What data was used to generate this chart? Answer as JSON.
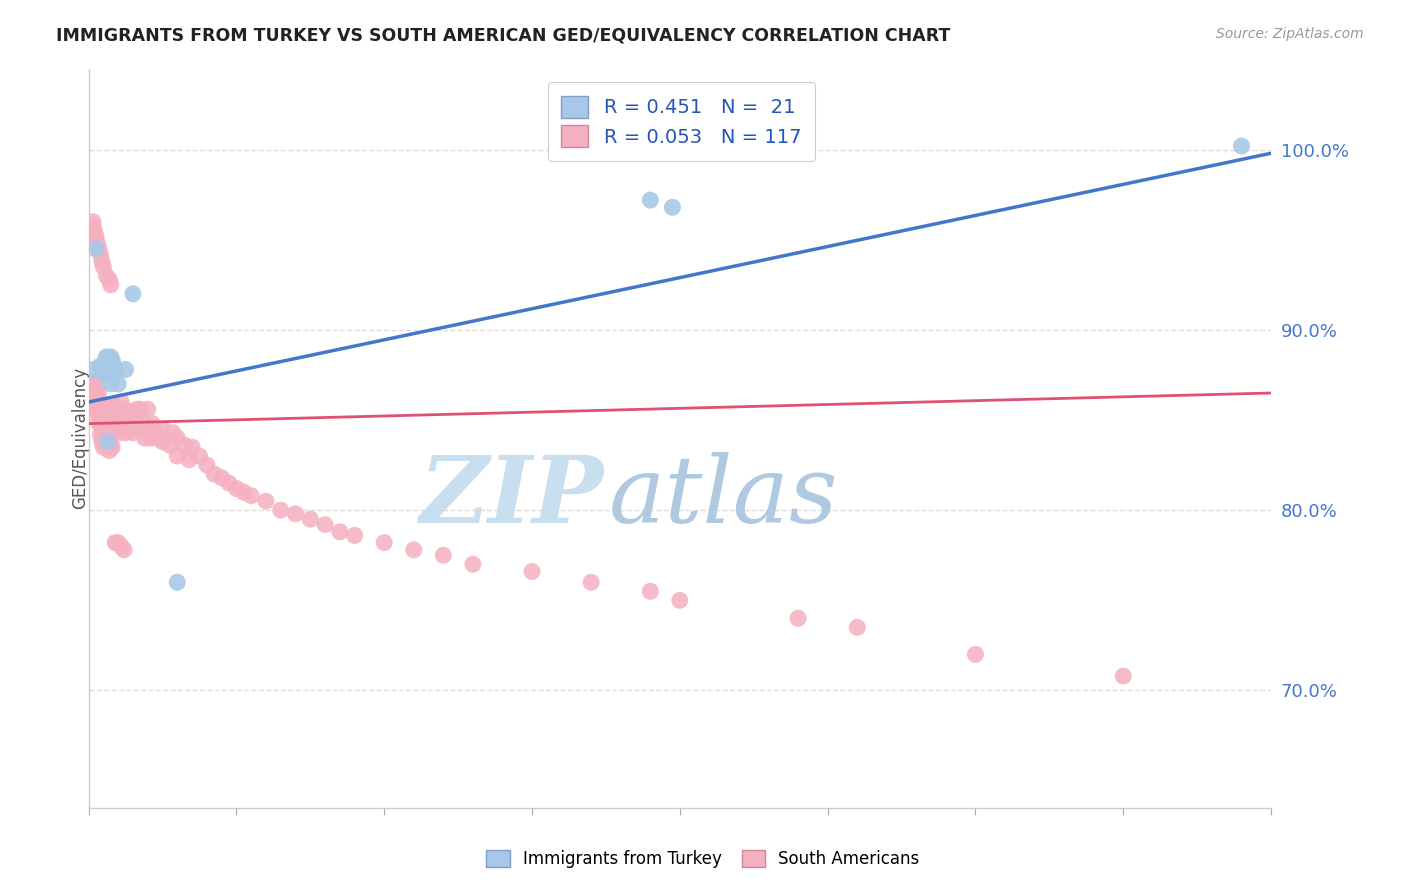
{
  "title": "IMMIGRANTS FROM TURKEY VS SOUTH AMERICAN GED/EQUIVALENCY CORRELATION CHART",
  "source": "Source: ZipAtlas.com",
  "ylabel": "GED/Equivalency",
  "ytick_labels": [
    "70.0%",
    "80.0%",
    "90.0%",
    "100.0%"
  ],
  "ytick_values": [
    0.7,
    0.8,
    0.9,
    1.0
  ],
  "xlim": [
    0.0,
    0.8
  ],
  "ylim": [
    0.635,
    1.045
  ],
  "legend_label_turkey": "Immigrants from Turkey",
  "legend_label_sa": "South Americans",
  "legend_r_turkey": "R = 0.451",
  "legend_n_turkey": "N =  21",
  "legend_r_sa": "R = 0.053",
  "legend_n_sa": "N = 117",
  "turkey_color": "#7bafd4",
  "turkey_face_color": "#a8c8e8",
  "sa_color": "#f08098",
  "sa_face_color": "#f5b0c0",
  "turkey_line_color": "#4477cc",
  "sa_line_color": "#e05070",
  "background_color": "#ffffff",
  "grid_color": "#dddddd",
  "watermark_zip": "ZIP",
  "watermark_atlas": "atlas",
  "watermark_color_zip": "#c8dff0",
  "watermark_color_atlas": "#b0c8e8",
  "turkey_x": [
    0.003,
    0.005,
    0.008,
    0.01,
    0.011,
    0.012,
    0.013,
    0.014,
    0.015,
    0.016,
    0.017,
    0.018,
    0.02,
    0.025,
    0.03,
    0.06,
    0.38,
    0.395,
    0.78,
    0.015,
    0.013
  ],
  "turkey_y": [
    0.878,
    0.945,
    0.88,
    0.876,
    0.882,
    0.885,
    0.878,
    0.876,
    0.885,
    0.883,
    0.88,
    0.877,
    0.87,
    0.878,
    0.92,
    0.76,
    0.972,
    0.968,
    1.002,
    0.87,
    0.838
  ],
  "sa_x": [
    0.002,
    0.003,
    0.004,
    0.004,
    0.005,
    0.005,
    0.005,
    0.005,
    0.006,
    0.006,
    0.007,
    0.007,
    0.007,
    0.007,
    0.008,
    0.008,
    0.008,
    0.009,
    0.009,
    0.01,
    0.01,
    0.01,
    0.01,
    0.011,
    0.011,
    0.012,
    0.012,
    0.012,
    0.013,
    0.013,
    0.014,
    0.014,
    0.015,
    0.015,
    0.015,
    0.016,
    0.016,
    0.017,
    0.017,
    0.018,
    0.018,
    0.019,
    0.02,
    0.02,
    0.021,
    0.022,
    0.022,
    0.023,
    0.024,
    0.025,
    0.025,
    0.027,
    0.028,
    0.03,
    0.03,
    0.031,
    0.032,
    0.033,
    0.035,
    0.035,
    0.037,
    0.038,
    0.04,
    0.04,
    0.042,
    0.043,
    0.045,
    0.047,
    0.05,
    0.05,
    0.055,
    0.057,
    0.06,
    0.06,
    0.065,
    0.068,
    0.07,
    0.075,
    0.08,
    0.085,
    0.09,
    0.095,
    0.1,
    0.105,
    0.11,
    0.12,
    0.13,
    0.14,
    0.15,
    0.16,
    0.17,
    0.18,
    0.2,
    0.22,
    0.24,
    0.26,
    0.3,
    0.34,
    0.38,
    0.4,
    0.48,
    0.52,
    0.6,
    0.7,
    0.003,
    0.003,
    0.004,
    0.005,
    0.006,
    0.007,
    0.008,
    0.009,
    0.01,
    0.012,
    0.014,
    0.015,
    0.016,
    0.018,
    0.02,
    0.022,
    0.024
  ],
  "sa_y": [
    0.866,
    0.862,
    0.858,
    0.87,
    0.856,
    0.86,
    0.868,
    0.872,
    0.852,
    0.862,
    0.848,
    0.855,
    0.86,
    0.866,
    0.842,
    0.85,
    0.856,
    0.838,
    0.845,
    0.835,
    0.842,
    0.848,
    0.852,
    0.84,
    0.846,
    0.836,
    0.843,
    0.858,
    0.838,
    0.852,
    0.833,
    0.848,
    0.836,
    0.842,
    0.858,
    0.843,
    0.852,
    0.847,
    0.856,
    0.85,
    0.858,
    0.845,
    0.848,
    0.856,
    0.843,
    0.852,
    0.86,
    0.848,
    0.856,
    0.843,
    0.855,
    0.848,
    0.855,
    0.843,
    0.852,
    0.845,
    0.852,
    0.856,
    0.845,
    0.856,
    0.848,
    0.84,
    0.845,
    0.856,
    0.84,
    0.848,
    0.843,
    0.84,
    0.838,
    0.845,
    0.836,
    0.843,
    0.83,
    0.84,
    0.836,
    0.828,
    0.835,
    0.83,
    0.825,
    0.82,
    0.818,
    0.815,
    0.812,
    0.81,
    0.808,
    0.805,
    0.8,
    0.798,
    0.795,
    0.792,
    0.788,
    0.786,
    0.782,
    0.778,
    0.775,
    0.77,
    0.766,
    0.76,
    0.755,
    0.75,
    0.74,
    0.735,
    0.72,
    0.708,
    0.96,
    0.958,
    0.955,
    0.952,
    0.948,
    0.945,
    0.942,
    0.938,
    0.935,
    0.93,
    0.928,
    0.925,
    0.835,
    0.782,
    0.782,
    0.78,
    0.778
  ],
  "turkey_line_x": [
    0.0,
    0.8
  ],
  "turkey_line_y": [
    0.86,
    0.998
  ],
  "sa_line_x": [
    0.0,
    0.8
  ],
  "sa_line_y": [
    0.848,
    0.865
  ]
}
